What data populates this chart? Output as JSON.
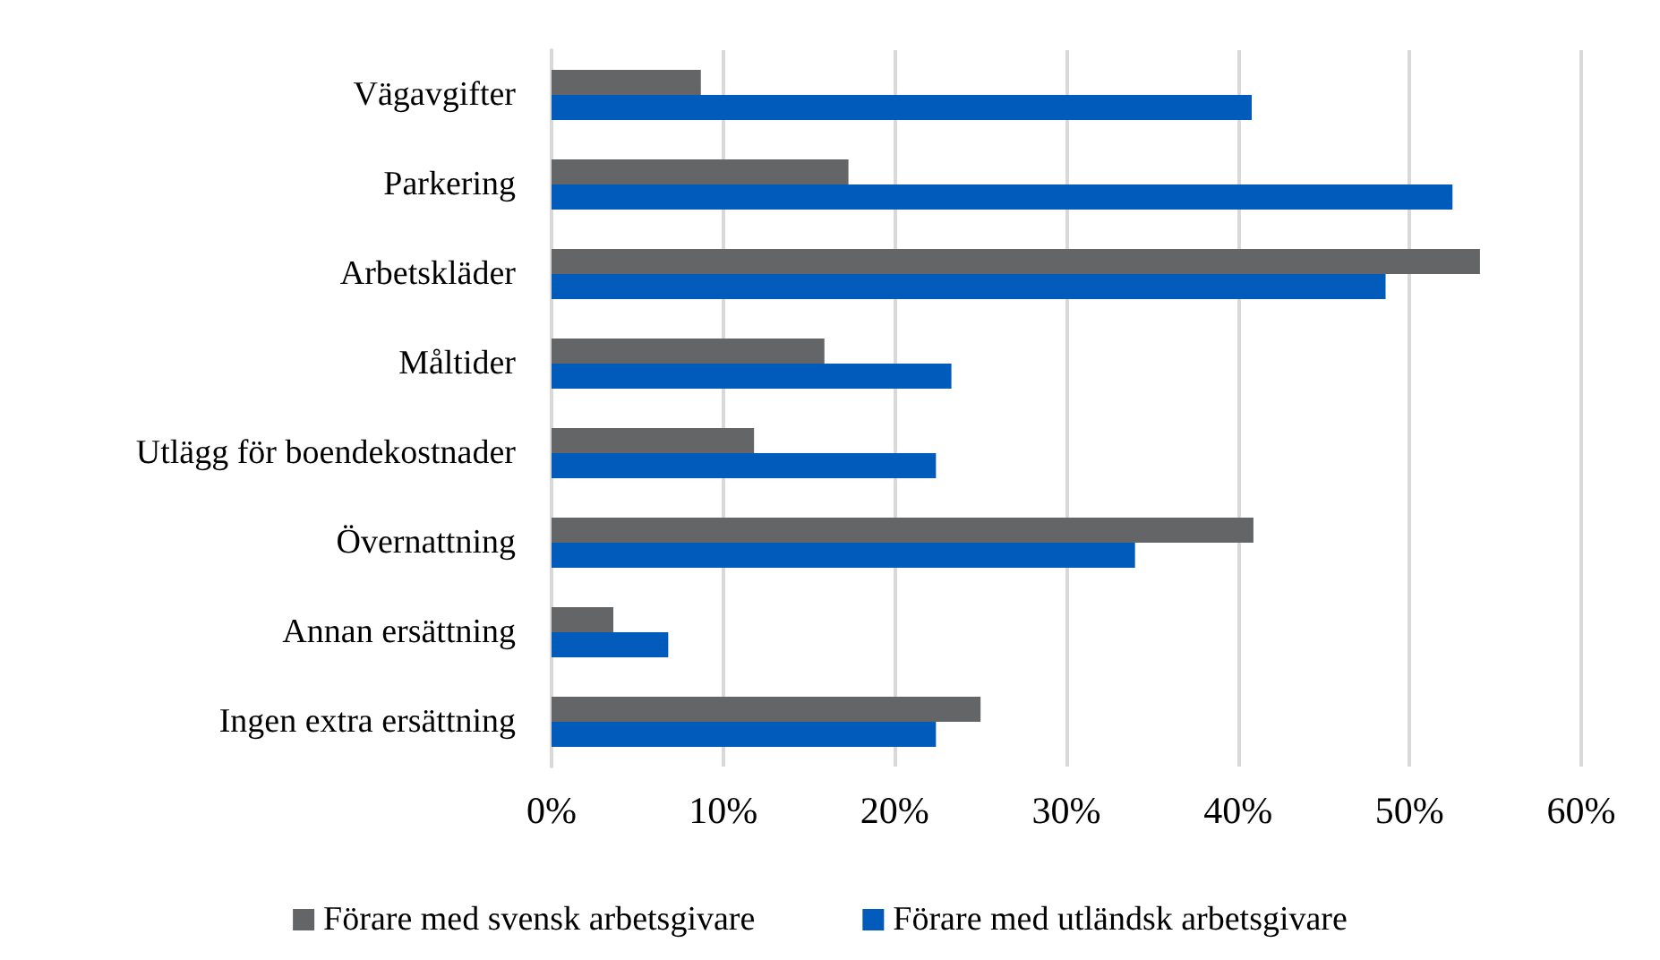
{
  "chart_data": {
    "type": "bar",
    "orientation": "horizontal",
    "categories": [
      "Vägavgifter",
      "Parkering",
      "Arbetskläder",
      "Måltider",
      "Utlägg för boendekostnader",
      "Övernattning",
      "Annan ersättning",
      "Ingen extra ersättning"
    ],
    "series": [
      {
        "name": "Förare med svensk arbetsgivare",
        "color": "#646567",
        "values": [
          8.7,
          17.3,
          54.1,
          15.9,
          11.8,
          40.9,
          3.6,
          25.0
        ]
      },
      {
        "name": "Förare med utländsk arbetsgivare",
        "color": "#005bbb",
        "values": [
          40.8,
          52.5,
          48.6,
          23.3,
          22.4,
          34.0,
          6.8,
          22.4
        ]
      }
    ],
    "xlim": [
      0,
      60
    ],
    "xticks": [
      {
        "value": 0,
        "label": "0%"
      },
      {
        "value": 10,
        "label": "10%"
      },
      {
        "value": 20,
        "label": "20%"
      },
      {
        "value": 30,
        "label": "30%"
      },
      {
        "value": 40,
        "label": "40%"
      },
      {
        "value": 50,
        "label": "50%"
      },
      {
        "value": 60,
        "label": "60%"
      }
    ],
    "grid": "x",
    "legend": "bottom"
  }
}
